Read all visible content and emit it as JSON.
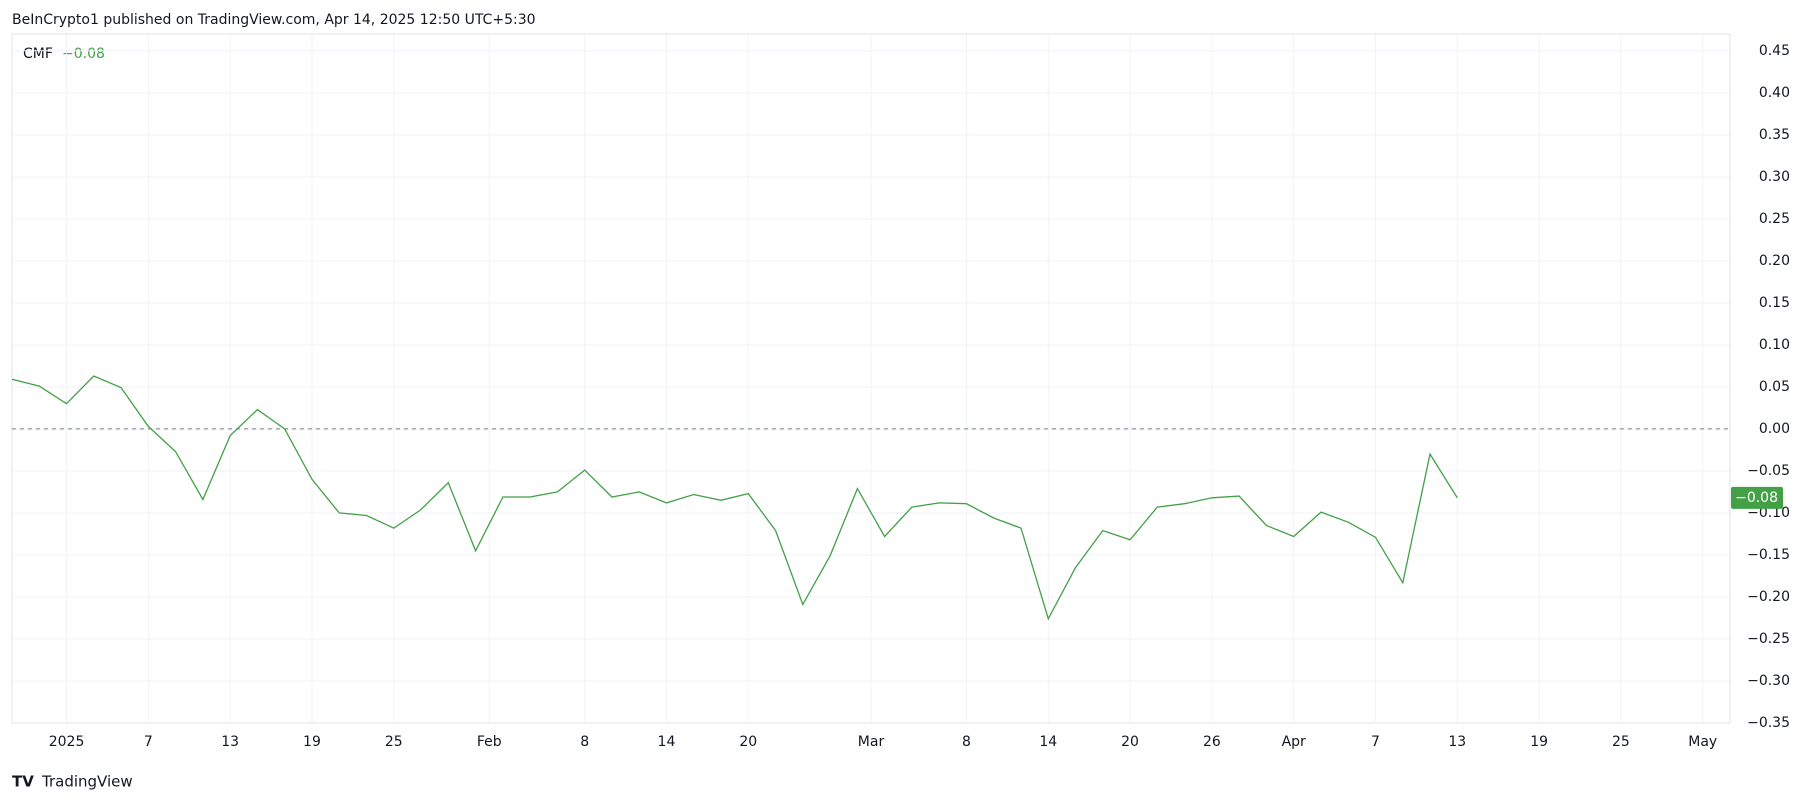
{
  "header": "BeInCrypto1 published on TradingView.com, Apr 14, 2025 12:50 UTC+5:30",
  "footer": "TradingView",
  "chart_data": {
    "type": "line",
    "grid": true,
    "hline": 0,
    "x": [
      "2024-12-28",
      "2024-12-30",
      "2025-01-01",
      "2025-01-03",
      "2025-01-05",
      "2025-01-07",
      "2025-01-09",
      "2025-01-11",
      "2025-01-13",
      "2025-01-15",
      "2025-01-17",
      "2025-01-19",
      "2025-01-21",
      "2025-01-23",
      "2025-01-25",
      "2025-01-27",
      "2025-01-29",
      "2025-01-31",
      "2025-02-02",
      "2025-02-04",
      "2025-02-06",
      "2025-02-08",
      "2025-02-10",
      "2025-02-12",
      "2025-02-14",
      "2025-02-16",
      "2025-02-18",
      "2025-02-20",
      "2025-02-22",
      "2025-02-24",
      "2025-02-26",
      "2025-02-28",
      "2025-03-02",
      "2025-03-04",
      "2025-03-06",
      "2025-03-08",
      "2025-03-10",
      "2025-03-12",
      "2025-03-14",
      "2025-03-16",
      "2025-03-18",
      "2025-03-20",
      "2025-03-22",
      "2025-03-24",
      "2025-03-26",
      "2025-03-28",
      "2025-03-30",
      "2025-04-01",
      "2025-04-03",
      "2025-04-05",
      "2025-04-07",
      "2025-04-09",
      "2025-04-11",
      "2025-04-13"
    ],
    "series": [
      {
        "name": "CMF",
        "color": "#43a047",
        "last_label": "−0.08",
        "values": [
          0.059,
          0.051,
          0.03,
          0.063,
          0.049,
          0.003,
          -0.027,
          -0.084,
          -0.008,
          0.023,
          0.0,
          -0.06,
          -0.1,
          -0.103,
          -0.118,
          -0.096,
          -0.064,
          -0.145,
          -0.081,
          -0.081,
          -0.075,
          -0.049,
          -0.081,
          -0.075,
          -0.088,
          -0.078,
          -0.085,
          -0.077,
          -0.121,
          -0.209,
          -0.151,
          -0.071,
          -0.128,
          -0.093,
          -0.088,
          -0.089,
          -0.106,
          -0.118,
          -0.226,
          -0.165,
          -0.121,
          -0.132,
          -0.093,
          -0.089,
          -0.082,
          -0.08,
          -0.115,
          -0.128,
          -0.099,
          -0.111,
          -0.129,
          -0.183,
          -0.03,
          -0.082
        ]
      }
    ],
    "xlim": [
      "2024-12-28",
      "2025-05-03"
    ],
    "xticks": [
      {
        "value": "2025-01-01",
        "label": "2025"
      },
      {
        "value": "2025-01-07",
        "label": "7"
      },
      {
        "value": "2025-01-13",
        "label": "13"
      },
      {
        "value": "2025-01-19",
        "label": "19"
      },
      {
        "value": "2025-01-25",
        "label": "25"
      },
      {
        "value": "2025-02-01",
        "label": "Feb"
      },
      {
        "value": "2025-02-08",
        "label": "8"
      },
      {
        "value": "2025-02-14",
        "label": "14"
      },
      {
        "value": "2025-02-20",
        "label": "20"
      },
      {
        "value": "2025-03-01",
        "label": "Mar"
      },
      {
        "value": "2025-03-08",
        "label": "8"
      },
      {
        "value": "2025-03-14",
        "label": "14"
      },
      {
        "value": "2025-03-20",
        "label": "20"
      },
      {
        "value": "2025-03-26",
        "label": "26"
      },
      {
        "value": "2025-04-01",
        "label": "Apr"
      },
      {
        "value": "2025-04-07",
        "label": "7"
      },
      {
        "value": "2025-04-13",
        "label": "13"
      },
      {
        "value": "2025-04-19",
        "label": "19"
      },
      {
        "value": "2025-04-25",
        "label": "25"
      },
      {
        "value": "2025-05-01",
        "label": "May"
      }
    ],
    "ylim": [
      -0.35,
      0.47
    ],
    "yticks": [
      {
        "value": 0.45,
        "label": "0.45"
      },
      {
        "value": 0.4,
        "label": "0.40"
      },
      {
        "value": 0.35,
        "label": "0.35"
      },
      {
        "value": 0.3,
        "label": "0.30"
      },
      {
        "value": 0.25,
        "label": "0.25"
      },
      {
        "value": 0.2,
        "label": "0.20"
      },
      {
        "value": 0.15,
        "label": "0.15"
      },
      {
        "value": 0.1,
        "label": "0.10"
      },
      {
        "value": 0.05,
        "label": "0.05"
      },
      {
        "value": 0,
        "label": "0.00"
      },
      {
        "value": -0.05,
        "label": "−0.05"
      },
      {
        "value": -0.1,
        "label": "−0.10"
      },
      {
        "value": -0.15,
        "label": "−0.15"
      },
      {
        "value": -0.2,
        "label": "−0.20"
      },
      {
        "value": -0.25,
        "label": "−0.25"
      },
      {
        "value": -0.3,
        "label": "−0.30"
      },
      {
        "value": -0.35,
        "label": "−0.35"
      }
    ]
  }
}
